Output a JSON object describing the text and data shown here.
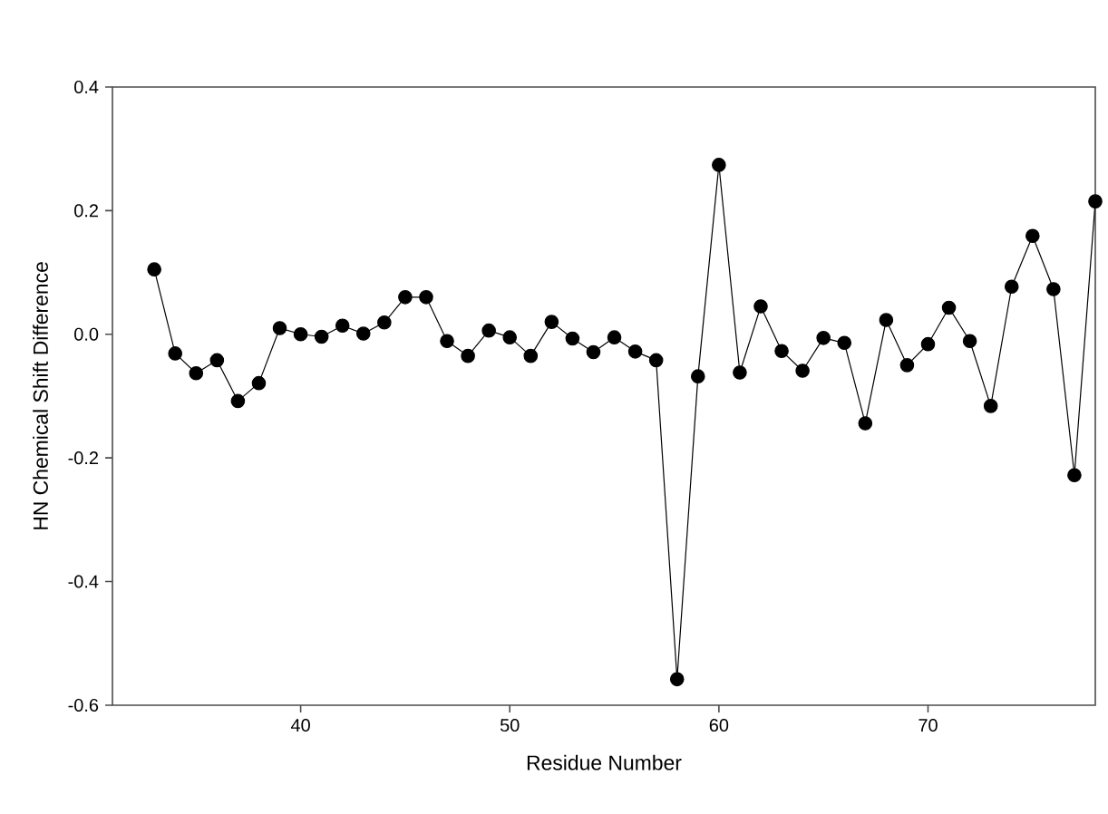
{
  "chart_data": {
    "type": "line",
    "xlabel": "Residue Number",
    "ylabel": "HN Chemical Shift Difference",
    "x": [
      33,
      34,
      35,
      36,
      37,
      38,
      39,
      40,
      41,
      42,
      43,
      44,
      45,
      46,
      47,
      48,
      49,
      50,
      51,
      52,
      53,
      54,
      55,
      56,
      57,
      58,
      59,
      60,
      61,
      62,
      63,
      64,
      65,
      66,
      67,
      68,
      69,
      70,
      71,
      72,
      73,
      74,
      75,
      76,
      77,
      78
    ],
    "series": [
      {
        "color": "#000000",
        "values": [
          0.105,
          -0.031,
          -0.063,
          -0.042,
          -0.108,
          -0.079,
          0.01,
          0.0,
          -0.004,
          0.014,
          0.001,
          0.019,
          0.06,
          0.06,
          -0.011,
          -0.035,
          0.006,
          -0.005,
          -0.035,
          0.02,
          -0.007,
          -0.029,
          -0.005,
          -0.028,
          -0.042,
          -0.558,
          -0.068,
          0.274,
          -0.062,
          0.045,
          -0.027,
          -0.059,
          -0.006,
          -0.014,
          -0.144,
          0.023,
          -0.05,
          -0.016,
          0.043,
          -0.011,
          -0.116,
          0.077,
          0.159,
          0.073,
          -0.228,
          0.215
        ]
      }
    ],
    "marker": "circle",
    "line_style": "solid",
    "xlim": [
      31,
      78
    ],
    "ylim": [
      -0.6,
      0.4
    ],
    "xticks": [
      40,
      50,
      60,
      70
    ],
    "yticks": [
      {
        "value": -0.6,
        "label": "-0.6"
      },
      {
        "value": -0.4,
        "label": "-0.4"
      },
      {
        "value": -0.2,
        "label": "-0.2"
      },
      {
        "value": 0,
        "label": "0.0"
      },
      {
        "value": 0.2,
        "label": "0.2"
      },
      {
        "value": 0.4,
        "label": "0.4"
      }
    ]
  }
}
